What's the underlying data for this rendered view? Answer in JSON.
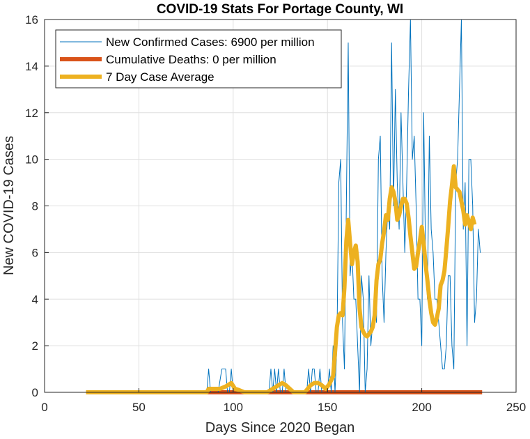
{
  "chart_data": {
    "type": "line",
    "title": "COVID-19 Stats For Portage County, WI",
    "xlabel": "Days Since 2020 Began",
    "ylabel": "New COVID-19 Cases",
    "xlim": [
      0,
      250
    ],
    "ylim": [
      0,
      16
    ],
    "xticks": [
      0,
      50,
      100,
      150,
      200,
      250
    ],
    "yticks": [
      0,
      2,
      4,
      6,
      8,
      10,
      12,
      14,
      16
    ],
    "grid": true,
    "legend_position": "top-left",
    "series": [
      {
        "name": "New Confirmed Cases: 6900 per million",
        "color": "#0072BD",
        "style": "thin",
        "points": [
          [
            22,
            0
          ],
          [
            85,
            0
          ],
          [
            86,
            0
          ],
          [
            87,
            1
          ],
          [
            88,
            0
          ],
          [
            90,
            0
          ],
          [
            92,
            0
          ],
          [
            94,
            1
          ],
          [
            95,
            1
          ],
          [
            96,
            1
          ],
          [
            97,
            0
          ],
          [
            98,
            0
          ],
          [
            99,
            1
          ],
          [
            100,
            0
          ],
          [
            101,
            0
          ],
          [
            119,
            0
          ],
          [
            120,
            1
          ],
          [
            121,
            0
          ],
          [
            122,
            1
          ],
          [
            123,
            0
          ],
          [
            124,
            1
          ],
          [
            125,
            0
          ],
          [
            126,
            0
          ],
          [
            127,
            1
          ],
          [
            128,
            0
          ],
          [
            139,
            0
          ],
          [
            140,
            1
          ],
          [
            141,
            0
          ],
          [
            142,
            1
          ],
          [
            143,
            1
          ],
          [
            144,
            0
          ],
          [
            145,
            0
          ],
          [
            146,
            1
          ],
          [
            147,
            0
          ],
          [
            148,
            0
          ],
          [
            150,
            0
          ],
          [
            151,
            1
          ],
          [
            152,
            0
          ],
          [
            153,
            2
          ],
          [
            154,
            0
          ],
          [
            155,
            2
          ],
          [
            156,
            9
          ],
          [
            157,
            10
          ],
          [
            158,
            3
          ],
          [
            159,
            1
          ],
          [
            160,
            8
          ],
          [
            161,
            15
          ],
          [
            162,
            5
          ],
          [
            163,
            6
          ],
          [
            164,
            4
          ],
          [
            165,
            4
          ],
          [
            166,
            2
          ],
          [
            167,
            0
          ],
          [
            168,
            5
          ],
          [
            169,
            4
          ],
          [
            170,
            0
          ],
          [
            171,
            1
          ],
          [
            172,
            5
          ],
          [
            173,
            2
          ],
          [
            174,
            3
          ],
          [
            175,
            4
          ],
          [
            176,
            3
          ],
          [
            177,
            10
          ],
          [
            178,
            11
          ],
          [
            179,
            5
          ],
          [
            180,
            3
          ],
          [
            181,
            6
          ],
          [
            182,
            8
          ],
          [
            183,
            7
          ],
          [
            184,
            15
          ],
          [
            185,
            8
          ],
          [
            186,
            13
          ],
          [
            187,
            9
          ],
          [
            188,
            7
          ],
          [
            189,
            12
          ],
          [
            190,
            9
          ],
          [
            191,
            6
          ],
          [
            192,
            9
          ],
          [
            193,
            13
          ],
          [
            194,
            16
          ],
          [
            195,
            10
          ],
          [
            196,
            11
          ],
          [
            197,
            8
          ],
          [
            198,
            4
          ],
          [
            199,
            4
          ],
          [
            200,
            2
          ],
          [
            201,
            12
          ],
          [
            202,
            6
          ],
          [
            203,
            4
          ],
          [
            204,
            11
          ],
          [
            205,
            7
          ],
          [
            206,
            6
          ],
          [
            207,
            4
          ],
          [
            208,
            4
          ],
          [
            209,
            3
          ],
          [
            210,
            2
          ],
          [
            211,
            1
          ],
          [
            212,
            1
          ],
          [
            213,
            2
          ],
          [
            214,
            5
          ],
          [
            215,
            5
          ],
          [
            216,
            2
          ],
          [
            217,
            1
          ],
          [
            218,
            9
          ],
          [
            219,
            10
          ],
          [
            220,
            13
          ],
          [
            221,
            16
          ],
          [
            222,
            7
          ],
          [
            223,
            9
          ],
          [
            224,
            2
          ],
          [
            225,
            10
          ],
          [
            226,
            10
          ],
          [
            227,
            8
          ],
          [
            228,
            3
          ],
          [
            229,
            4
          ],
          [
            230,
            7
          ],
          [
            231,
            6
          ]
        ]
      },
      {
        "name": "Cumulative Deaths: 0 per million",
        "color": "#D95319",
        "style": "thick",
        "points": [
          [
            22,
            0
          ],
          [
            232,
            0
          ]
        ]
      },
      {
        "name": "7 Day Case Average",
        "color": "#EDB120",
        "style": "thick",
        "points": [
          [
            22,
            0
          ],
          [
            86,
            0
          ],
          [
            87,
            0.15
          ],
          [
            90,
            0.15
          ],
          [
            93,
            0.15
          ],
          [
            96,
            0.25
          ],
          [
            99,
            0.4
          ],
          [
            101,
            0.15
          ],
          [
            103,
            0.1
          ],
          [
            106,
            0
          ],
          [
            118,
            0
          ],
          [
            121,
            0.15
          ],
          [
            124,
            0.3
          ],
          [
            126,
            0.4
          ],
          [
            128,
            0.3
          ],
          [
            130,
            0.15
          ],
          [
            132,
            0
          ],
          [
            138,
            0
          ],
          [
            141,
            0.3
          ],
          [
            143,
            0.4
          ],
          [
            145,
            0.4
          ],
          [
            147,
            0.3
          ],
          [
            149,
            0.15
          ],
          [
            151,
            0.35
          ],
          [
            153,
            0.7
          ],
          [
            154,
            1.7
          ],
          [
            155,
            2.8
          ],
          [
            156,
            3.3
          ],
          [
            157,
            3.4
          ],
          [
            158,
            3.3
          ],
          [
            159,
            4.5
          ],
          [
            160,
            6.5
          ],
          [
            161,
            7.4
          ],
          [
            162,
            6.4
          ],
          [
            163,
            5.5
          ],
          [
            164,
            6.0
          ],
          [
            165,
            6.3
          ],
          [
            166,
            5.6
          ],
          [
            167,
            3.6
          ],
          [
            168,
            2.8
          ],
          [
            169,
            2.6
          ],
          [
            170,
            2.45
          ],
          [
            171,
            2.4
          ],
          [
            172,
            2.5
          ],
          [
            173,
            2.6
          ],
          [
            174,
            2.8
          ],
          [
            175,
            3.3
          ],
          [
            176,
            4.8
          ],
          [
            177,
            5.5
          ],
          [
            178,
            5.7
          ],
          [
            179,
            6.4
          ],
          [
            180,
            6.9
          ],
          [
            181,
            7.6
          ],
          [
            182,
            7.4
          ],
          [
            183,
            8.3
          ],
          [
            184,
            8.8
          ],
          [
            185,
            8.6
          ],
          [
            186,
            8.2
          ],
          [
            187,
            7.4
          ],
          [
            188,
            7.6
          ],
          [
            189,
            8.0
          ],
          [
            190,
            8.3
          ],
          [
            191,
            8.3
          ],
          [
            192,
            8.1
          ],
          [
            193,
            7.5
          ],
          [
            194,
            6.7
          ],
          [
            195,
            6.0
          ],
          [
            196,
            5.3
          ],
          [
            197,
            5.4
          ],
          [
            198,
            6.0
          ],
          [
            199,
            6.5
          ],
          [
            200,
            7.1
          ],
          [
            201,
            6.4
          ],
          [
            202,
            5.5
          ],
          [
            203,
            4.8
          ],
          [
            204,
            4.0
          ],
          [
            205,
            3.4
          ],
          [
            206,
            3.0
          ],
          [
            207,
            2.9
          ],
          [
            208,
            3.2
          ],
          [
            209,
            3.6
          ],
          [
            210,
            4.6
          ],
          [
            211,
            4.8
          ],
          [
            212,
            5.2
          ],
          [
            213,
            6.1
          ],
          [
            214,
            7.1
          ],
          [
            215,
            8.2
          ],
          [
            216,
            8.9
          ],
          [
            217,
            9.7
          ],
          [
            218,
            8.8
          ],
          [
            219,
            8.7
          ],
          [
            220,
            8.6
          ],
          [
            221,
            8.2
          ],
          [
            222,
            7.8
          ],
          [
            223,
            7.2
          ],
          [
            224,
            7.6
          ],
          [
            225,
            7.3
          ],
          [
            226,
            7.0
          ],
          [
            227,
            7.5
          ],
          [
            228,
            7.2
          ]
        ]
      }
    ]
  }
}
